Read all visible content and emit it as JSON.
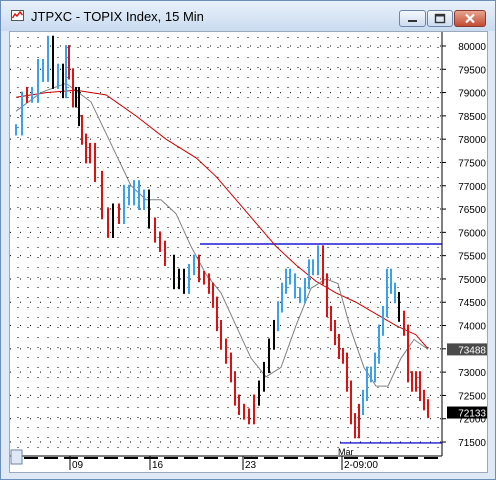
{
  "window": {
    "title": "JTPXC - TOPIX Index, 15 Min"
  },
  "price_labels": {
    "last_price": "72133",
    "ma_value": "73488"
  },
  "colors": {
    "up_bars": "#3aa0f0",
    "down_bars": "#dd1111",
    "neutral_bars": "#000000",
    "slow_ma": "#cc0000",
    "fast_ma": "#808080",
    "level_lines": "#1a1ad0",
    "ma_label_bg": "#4a4a4a",
    "price_label_bg": "#000000"
  },
  "chart_data": {
    "type": "line",
    "symbol": "JTPXC",
    "name": "TOPIX Index",
    "timeframe": "15 Min",
    "y_ticks": [
      80000,
      79500,
      79000,
      78500,
      78000,
      77500,
      77000,
      76500,
      76000,
      75500,
      75000,
      74500,
      74000,
      73500,
      73000,
      72500,
      72000,
      71500
    ],
    "y_tick_labels": [
      "80000",
      "79500",
      "79000",
      "78500",
      "78000",
      "77500",
      "77000",
      "76500",
      "76000",
      "75500",
      "75000",
      "74500",
      "74000",
      "73500",
      "73000",
      "72500",
      "72000",
      "71500"
    ],
    "x_tick_labels": [
      "09",
      "16",
      "23",
      "2-09:00"
    ],
    "x_month_label": "Mar",
    "ylim": [
      71200,
      80300
    ],
    "grid": true,
    "last_price": 72133,
    "horizontal_levels": [
      75750,
      71480
    ],
    "price_series": [
      {
        "x": 0,
        "y": 78200,
        "trend": "up"
      },
      {
        "x": 6,
        "y": 78900,
        "trend": "up"
      },
      {
        "x": 11,
        "y": 79000,
        "trend": "down"
      },
      {
        "x": 16,
        "y": 78900,
        "trend": "up"
      },
      {
        "x": 22,
        "y": 79600,
        "trend": "up"
      },
      {
        "x": 27,
        "y": 79350,
        "trend": "up"
      },
      {
        "x": 32,
        "y": 80100,
        "trend": "up"
      },
      {
        "x": 37,
        "y": 79200,
        "trend": "neutral"
      },
      {
        "x": 42,
        "y": 79500,
        "trend": "up"
      },
      {
        "x": 47,
        "y": 79000,
        "trend": "neutral"
      },
      {
        "x": 50,
        "y": 79900,
        "trend": "up"
      },
      {
        "x": 53,
        "y": 79400,
        "trend": "down"
      },
      {
        "x": 57,
        "y": 78800,
        "trend": "down"
      },
      {
        "x": 60,
        "y": 79000,
        "trend": "neutral"
      },
      {
        "x": 63,
        "y": 78400,
        "trend": "neutral"
      },
      {
        "x": 66,
        "y": 78000,
        "trend": "down"
      },
      {
        "x": 70,
        "y": 77600,
        "trend": "down"
      },
      {
        "x": 74,
        "y": 77800,
        "trend": "down"
      },
      {
        "x": 79,
        "y": 77200,
        "trend": "down"
      },
      {
        "x": 86,
        "y": 76400,
        "trend": "down"
      },
      {
        "x": 92,
        "y": 76000,
        "trend": "down"
      },
      {
        "x": 97,
        "y": 76500,
        "trend": "neutral"
      },
      {
        "x": 103,
        "y": 76300,
        "trend": "down"
      },
      {
        "x": 108,
        "y": 76900,
        "trend": "up"
      },
      {
        "x": 113,
        "y": 76700,
        "trend": "up"
      },
      {
        "x": 118,
        "y": 77000,
        "trend": "up"
      },
      {
        "x": 123,
        "y": 76600,
        "trend": "up"
      },
      {
        "x": 128,
        "y": 76800,
        "trend": "up"
      },
      {
        "x": 133,
        "y": 76200,
        "trend": "neutral"
      },
      {
        "x": 139,
        "y": 75900,
        "trend": "down"
      },
      {
        "x": 144,
        "y": 75700,
        "trend": "down"
      },
      {
        "x": 149,
        "y": 75400,
        "trend": "down"
      },
      {
        "x": 158,
        "y": 74900,
        "trend": "neutral"
      },
      {
        "x": 163,
        "y": 75100,
        "trend": "neutral"
      },
      {
        "x": 168,
        "y": 74800,
        "trend": "neutral"
      },
      {
        "x": 173,
        "y": 75200,
        "trend": "up"
      },
      {
        "x": 178,
        "y": 75400,
        "trend": "up"
      },
      {
        "x": 183,
        "y": 75050,
        "trend": "down"
      },
      {
        "x": 188,
        "y": 75000,
        "trend": "down"
      },
      {
        "x": 193,
        "y": 74800,
        "trend": "down"
      },
      {
        "x": 197,
        "y": 74500,
        "trend": "down"
      },
      {
        "x": 201,
        "y": 74000,
        "trend": "down"
      },
      {
        "x": 205,
        "y": 73600,
        "trend": "down"
      },
      {
        "x": 210,
        "y": 73300,
        "trend": "down"
      },
      {
        "x": 215,
        "y": 72900,
        "trend": "down"
      },
      {
        "x": 219,
        "y": 72400,
        "trend": "down"
      },
      {
        "x": 223,
        "y": 72200,
        "trend": "down"
      },
      {
        "x": 228,
        "y": 72100,
        "trend": "down"
      },
      {
        "x": 233,
        "y": 72000,
        "trend": "down"
      },
      {
        "x": 238,
        "y": 72400,
        "trend": "down"
      },
      {
        "x": 243,
        "y": 72700,
        "trend": "neutral"
      },
      {
        "x": 248,
        "y": 73100,
        "trend": "neutral"
      },
      {
        "x": 253,
        "y": 73600,
        "trend": "neutral"
      },
      {
        "x": 258,
        "y": 74000,
        "trend": "neutral"
      },
      {
        "x": 262,
        "y": 74400,
        "trend": "up"
      },
      {
        "x": 266,
        "y": 74800,
        "trend": "up"
      },
      {
        "x": 270,
        "y": 75100,
        "trend": "up"
      },
      {
        "x": 274,
        "y": 75000,
        "trend": "up"
      },
      {
        "x": 279,
        "y": 74700,
        "trend": "up"
      },
      {
        "x": 284,
        "y": 74600,
        "trend": "up"
      },
      {
        "x": 289,
        "y": 74900,
        "trend": "up"
      },
      {
        "x": 293,
        "y": 75300,
        "trend": "up"
      },
      {
        "x": 297,
        "y": 75200,
        "trend": "up"
      },
      {
        "x": 302,
        "y": 75600,
        "trend": "up"
      },
      {
        "x": 307,
        "y": 75000,
        "trend": "down"
      },
      {
        "x": 311,
        "y": 74300,
        "trend": "down"
      },
      {
        "x": 315,
        "y": 74000,
        "trend": "down"
      },
      {
        "x": 319,
        "y": 73700,
        "trend": "down"
      },
      {
        "x": 323,
        "y": 73400,
        "trend": "down"
      },
      {
        "x": 327,
        "y": 73300,
        "trend": "down"
      },
      {
        "x": 331,
        "y": 72700,
        "trend": "down"
      },
      {
        "x": 335,
        "y": 72000,
        "trend": "down"
      },
      {
        "x": 339,
        "y": 71700,
        "trend": "down"
      },
      {
        "x": 343,
        "y": 72200,
        "trend": "down"
      },
      {
        "x": 347,
        "y": 72500,
        "trend": "up"
      },
      {
        "x": 351,
        "y": 73000,
        "trend": "up"
      },
      {
        "x": 355,
        "y": 72900,
        "trend": "up"
      },
      {
        "x": 359,
        "y": 73300,
        "trend": "up"
      },
      {
        "x": 363,
        "y": 73900,
        "trend": "up"
      },
      {
        "x": 367,
        "y": 74300,
        "trend": "up"
      },
      {
        "x": 371,
        "y": 75100,
        "trend": "up"
      },
      {
        "x": 375,
        "y": 74800,
        "trend": "up"
      },
      {
        "x": 379,
        "y": 74600,
        "trend": "up"
      },
      {
        "x": 383,
        "y": 74200,
        "trend": "neutral"
      },
      {
        "x": 388,
        "y": 73900,
        "trend": "down"
      },
      {
        "x": 392,
        "y": 72900,
        "trend": "down"
      },
      {
        "x": 396,
        "y": 72700,
        "trend": "down"
      },
      {
        "x": 400,
        "y": 72900,
        "trend": "down"
      },
      {
        "x": 404,
        "y": 72500,
        "trend": "down"
      },
      {
        "x": 408,
        "y": 72300,
        "trend": "down"
      },
      {
        "x": 412,
        "y": 72133,
        "trend": "down"
      }
    ],
    "slow_ma": [
      {
        "x": 0,
        "y": 78900
      },
      {
        "x": 30,
        "y": 79000
      },
      {
        "x": 60,
        "y": 79050
      },
      {
        "x": 90,
        "y": 78950
      },
      {
        "x": 120,
        "y": 78500
      },
      {
        "x": 150,
        "y": 78000
      },
      {
        "x": 180,
        "y": 77600
      },
      {
        "x": 200,
        "y": 77200
      },
      {
        "x": 220,
        "y": 76700
      },
      {
        "x": 240,
        "y": 76200
      },
      {
        "x": 260,
        "y": 75700
      },
      {
        "x": 280,
        "y": 75300
      },
      {
        "x": 300,
        "y": 74950
      },
      {
        "x": 320,
        "y": 74700
      },
      {
        "x": 340,
        "y": 74500
      },
      {
        "x": 360,
        "y": 74250
      },
      {
        "x": 380,
        "y": 74000
      },
      {
        "x": 400,
        "y": 73800
      },
      {
        "x": 412,
        "y": 73500
      }
    ],
    "fast_ma": [
      {
        "x": 0,
        "y": 78600
      },
      {
        "x": 25,
        "y": 79000
      },
      {
        "x": 50,
        "y": 79200
      },
      {
        "x": 75,
        "y": 78800
      },
      {
        "x": 95,
        "y": 77900
      },
      {
        "x": 115,
        "y": 77000
      },
      {
        "x": 130,
        "y": 76700
      },
      {
        "x": 145,
        "y": 76700
      },
      {
        "x": 160,
        "y": 76400
      },
      {
        "x": 175,
        "y": 75700
      },
      {
        "x": 190,
        "y": 75100
      },
      {
        "x": 205,
        "y": 74700
      },
      {
        "x": 220,
        "y": 74000
      },
      {
        "x": 235,
        "y": 73300
      },
      {
        "x": 250,
        "y": 72900
      },
      {
        "x": 265,
        "y": 73100
      },
      {
        "x": 280,
        "y": 74000
      },
      {
        "x": 295,
        "y": 74800
      },
      {
        "x": 310,
        "y": 75000
      },
      {
        "x": 322,
        "y": 74900
      },
      {
        "x": 335,
        "y": 73900
      },
      {
        "x": 348,
        "y": 73100
      },
      {
        "x": 360,
        "y": 72700
      },
      {
        "x": 372,
        "y": 72700
      },
      {
        "x": 385,
        "y": 73300
      },
      {
        "x": 398,
        "y": 73700
      },
      {
        "x": 412,
        "y": 73488
      }
    ]
  }
}
